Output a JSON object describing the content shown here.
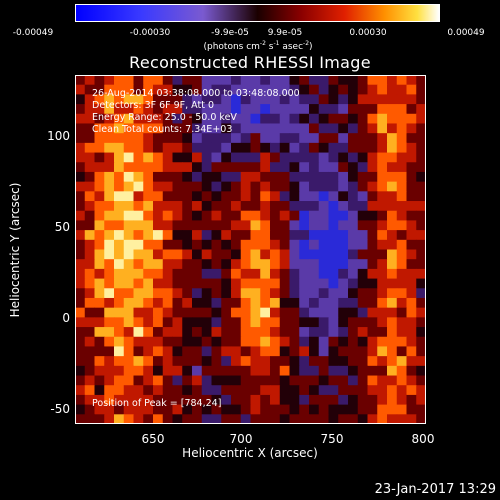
{
  "chart_data": {
    "type": "heatmap",
    "title": "Reconstructed RHESSI Image",
    "xlabel": "Heliocentric X (arcsec)",
    "ylabel": "Heliocentric Y (arcsec)",
    "xlim": [
      610,
      800
    ],
    "ylim": [
      -55,
      135
    ],
    "xticks": [
      "650",
      "700",
      "750",
      "800"
    ],
    "yticks": [
      "-50",
      "0",
      "50",
      "100"
    ],
    "colorbar": {
      "ticks": [
        "-0.00049",
        "-0.00030",
        "-9.9e-05",
        "9.9e-05",
        "0.00030",
        "0.00049"
      ],
      "units_main": "(photons cm",
      "units_exp1": "-2",
      "units_mid1": " s",
      "units_exp2": "-1",
      "units_mid2": " asec",
      "units_exp3": "-2",
      "units_end": ")"
    },
    "annotations": {
      "time": "26-Aug-2014 03:38:08.000 to 03:48:08.000",
      "detectors": "Detectors: 3F 6F 9F, Att 0",
      "energy": "Energy Range: 25.0 - 50.0 keV",
      "clean": "Clean    Total counts: 7.34E+03",
      "peak": "Position of Peak = [784,24]"
    }
  },
  "footer": {
    "date": "23-Jan-2017 13:29"
  }
}
